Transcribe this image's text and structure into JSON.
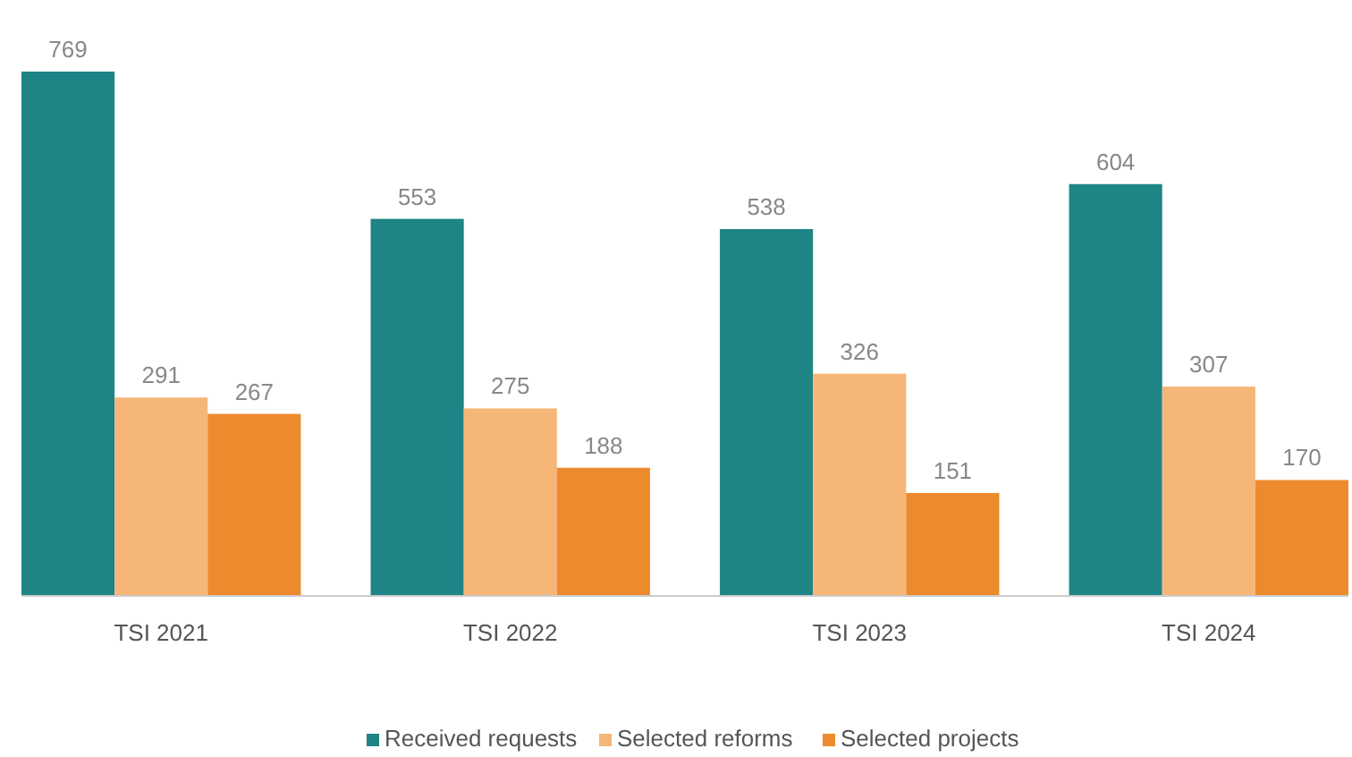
{
  "chart_data": {
    "type": "bar",
    "categories": [
      "TSI 2021",
      "TSI 2022",
      "TSI 2023",
      "TSI 2024"
    ],
    "series": [
      {
        "name": "Received requests",
        "color": "#1e8485",
        "values": [
          769,
          553,
          538,
          604
        ]
      },
      {
        "name": "Selected reforms",
        "color": "#f5b678",
        "values": [
          291,
          275,
          326,
          307
        ]
      },
      {
        "name": "Selected projects",
        "color": "#ee8a2e",
        "values": [
          267,
          188,
          151,
          170
        ]
      }
    ],
    "data_labels": true,
    "legend": "bottom",
    "ylim": [
      0,
      769
    ],
    "tick_labels": "x"
  }
}
